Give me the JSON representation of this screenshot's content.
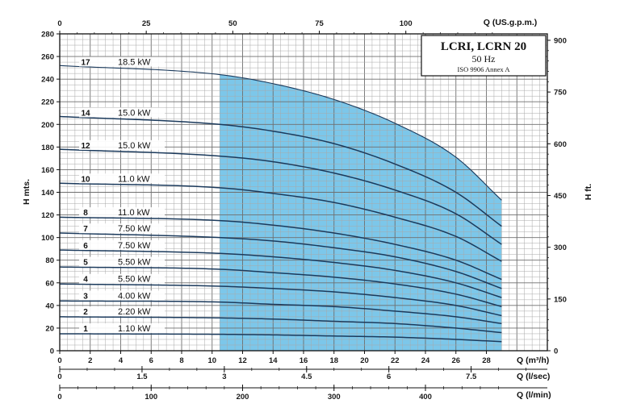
{
  "chart_data": {
    "type": "line",
    "title": "LCRI, LCRN 20",
    "subtitle": "50 Hz",
    "note": "ISO 9906 Annex A",
    "xlabel": "Q (m³/h)",
    "ylabel": "H mts.",
    "ylabel_right": "H ft.",
    "xlabel_top": "Q (US.g.p.m.)",
    "xlabel_lsec": "Q (l/sec)",
    "xlabel_lmin": "Q (l/min)",
    "xlim": [
      0,
      32
    ],
    "ylim": [
      0,
      280
    ],
    "grid": true,
    "operating_range_q": [
      10.5,
      29
    ],
    "range_color": "#7cc7ea",
    "curve_color": "#1b3a5c",
    "x_ticks": [
      0,
      2,
      4,
      6,
      8,
      10,
      12,
      14,
      16,
      18,
      20,
      22,
      24,
      26,
      28
    ],
    "x_tick_labels": [
      "0",
      "2",
      "4",
      "6",
      "8",
      "10",
      "12",
      "14",
      "16",
      "18",
      "20",
      "22",
      "24",
      "26",
      "28"
    ],
    "y_ticks": [
      0,
      20,
      40,
      60,
      80,
      100,
      120,
      140,
      160,
      180,
      200,
      220,
      240,
      260,
      280
    ],
    "y_tick_labels": [
      "0",
      "20",
      "40",
      "60",
      "80",
      "100",
      "120",
      "140",
      "160",
      "180",
      "200",
      "220",
      "240",
      "260",
      "280"
    ],
    "usgpm_ticks": [
      0,
      25,
      50,
      75,
      100
    ],
    "usgpm_tick_labels": [
      "0",
      "25",
      "50",
      "75",
      "100"
    ],
    "ft_ticks": [
      0,
      150,
      300,
      450,
      600,
      750,
      900
    ],
    "ft_tick_labels": [
      "0",
      "150",
      "300",
      "450",
      "600",
      "750",
      "900"
    ],
    "lsec_ticks": [
      0,
      1.5,
      3,
      4.5,
      6,
      7.5
    ],
    "lsec_tick_labels": [
      "0",
      "1.5",
      "3",
      "4.5",
      "6",
      "7.5"
    ],
    "lmin_ticks": [
      0,
      100,
      200,
      300,
      400
    ],
    "lmin_tick_labels": [
      "0",
      "100",
      "200",
      "300",
      "400"
    ],
    "q_points": [
      0,
      10.5,
      14,
      18,
      22,
      26,
      29
    ],
    "series": [
      {
        "stages": "17",
        "power": "18.5 kW",
        "h": [
          252,
          244,
          236,
          222,
          201,
          171,
          133
        ]
      },
      {
        "stages": "14",
        "power": "15.0 kW",
        "h": [
          207,
          200,
          194,
          183,
          165,
          140,
          110
        ]
      },
      {
        "stages": "12",
        "power": "15.0 kW",
        "h": [
          178,
          172,
          167,
          157,
          142,
          121,
          94
        ]
      },
      {
        "stages": "10",
        "power": "11.0 kW",
        "h": [
          148,
          144,
          139,
          131,
          118,
          101,
          79
        ]
      },
      {
        "stages": "8",
        "power": "11.0 kW",
        "h": [
          118,
          115,
          111,
          104,
          94,
          80,
          63
        ]
      },
      {
        "stages": "7",
        "power": "7.50 kW",
        "h": [
          104,
          100,
          97,
          91,
          83,
          70,
          55
        ]
      },
      {
        "stages": "6",
        "power": "7.50 kW",
        "h": [
          89,
          86,
          83,
          78,
          71,
          60,
          47
        ]
      },
      {
        "stages": "5",
        "power": "5.50 kW",
        "h": [
          74,
          72,
          69,
          65,
          59,
          50,
          39
        ]
      },
      {
        "stages": "4",
        "power": "5.50 kW",
        "h": [
          59,
          57,
          55,
          52,
          47,
          40,
          31
        ]
      },
      {
        "stages": "3",
        "power": "4.00 kW",
        "h": [
          44,
          43,
          41,
          39,
          35,
          30,
          24
        ]
      },
      {
        "stages": "2",
        "power": "2.20 kW",
        "h": [
          30,
          29,
          28,
          26,
          24,
          20,
          16
        ]
      },
      {
        "stages": "1",
        "power": "1.10 kW",
        "h": [
          15,
          14.5,
          14,
          13,
          12,
          10,
          8
        ]
      }
    ]
  }
}
